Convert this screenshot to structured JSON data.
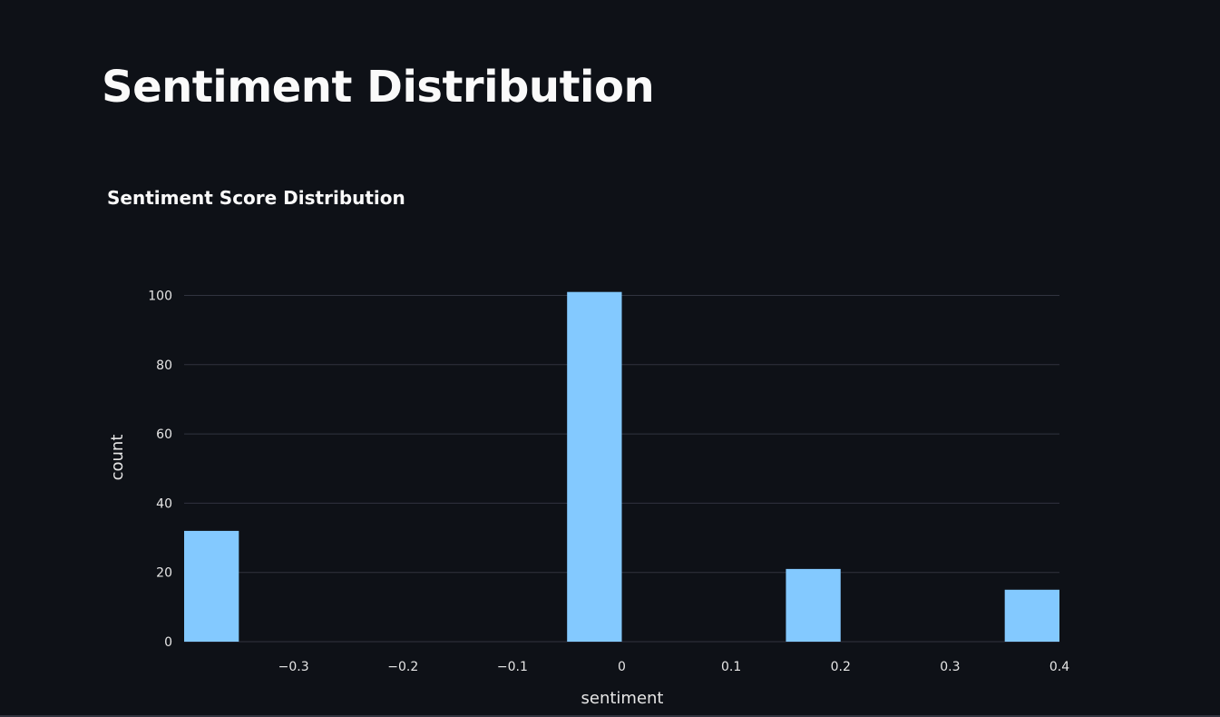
{
  "page": {
    "title": "Sentiment Distribution"
  },
  "colors": {
    "background": "#0e1117",
    "bar": "#83c9ff",
    "gridline": "#31333f",
    "text": "#fafafa",
    "tick_text": "#e6e6e6"
  },
  "chart_data": {
    "type": "bar",
    "title": "Sentiment Score Distribution",
    "xlabel": "sentiment",
    "ylabel": "count",
    "grid": true,
    "xlim": [
      -0.4,
      0.4
    ],
    "ylim": [
      0,
      106
    ],
    "x_ticks": [
      -0.3,
      -0.2,
      -0.1,
      0,
      0.1,
      0.2,
      0.3,
      0.4
    ],
    "x_tick_labels": [
      "−0.3",
      "−0.2",
      "−0.1",
      "0",
      "0.1",
      "0.2",
      "0.3",
      "0.4"
    ],
    "y_ticks": [
      0,
      20,
      40,
      60,
      80,
      100
    ],
    "y_tick_labels": [
      "0",
      "20",
      "40",
      "60",
      "80",
      "100"
    ],
    "bar_width": 0.05,
    "bars": [
      {
        "x": -0.375,
        "value": 32
      },
      {
        "x": -0.025,
        "value": 101
      },
      {
        "x": 0.175,
        "value": 21
      },
      {
        "x": 0.375,
        "value": 15
      }
    ]
  }
}
